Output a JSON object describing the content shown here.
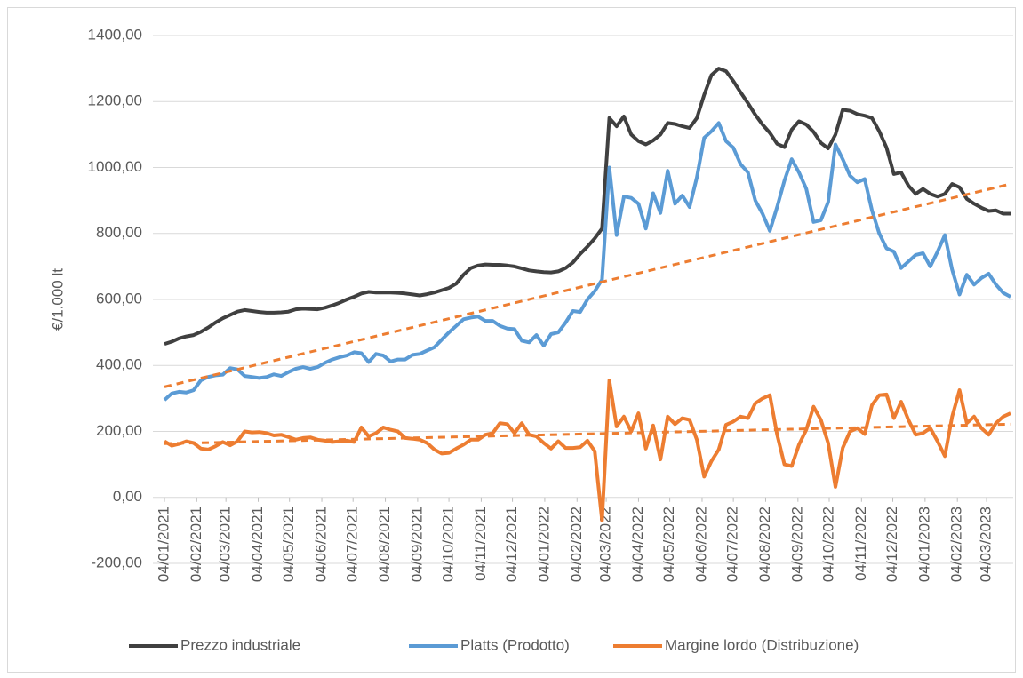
{
  "chart_data": {
    "type": "line",
    "y_label": "€/1.000 lt",
    "x": [
      "04/01/2021",
      "11/01/2021",
      "18/01/2021",
      "25/01/2021",
      "01/02/2021",
      "08/02/2021",
      "15/02/2021",
      "22/02/2021",
      "01/03/2021",
      "08/03/2021",
      "15/03/2021",
      "22/03/2021",
      "29/03/2021",
      "05/04/2021",
      "12/04/2021",
      "19/04/2021",
      "26/04/2021",
      "03/05/2021",
      "10/05/2021",
      "17/05/2021",
      "24/05/2021",
      "31/05/2021",
      "07/06/2021",
      "14/06/2021",
      "21/06/2021",
      "28/06/2021",
      "05/07/2021",
      "12/07/2021",
      "19/07/2021",
      "26/07/2021",
      "02/08/2021",
      "09/08/2021",
      "16/08/2021",
      "23/08/2021",
      "30/08/2021",
      "06/09/2021",
      "13/09/2021",
      "20/09/2021",
      "27/09/2021",
      "04/10/2021",
      "11/10/2021",
      "18/10/2021",
      "25/10/2021",
      "01/11/2021",
      "08/11/2021",
      "15/11/2021",
      "22/11/2021",
      "29/11/2021",
      "06/12/2021",
      "13/12/2021",
      "20/12/2021",
      "27/12/2021",
      "03/01/2022",
      "10/01/2022",
      "17/01/2022",
      "24/01/2022",
      "31/01/2022",
      "07/02/2022",
      "14/02/2022",
      "21/02/2022",
      "28/02/2022",
      "07/03/2022",
      "14/03/2022",
      "21/03/2022",
      "28/03/2022",
      "04/04/2022",
      "11/04/2022",
      "18/04/2022",
      "25/04/2022",
      "02/05/2022",
      "09/05/2022",
      "16/05/2022",
      "23/05/2022",
      "30/05/2022",
      "06/06/2022",
      "13/06/2022",
      "20/06/2022",
      "27/06/2022",
      "04/07/2022",
      "11/07/2022",
      "18/07/2022",
      "25/07/2022",
      "01/08/2022",
      "08/08/2022",
      "15/08/2022",
      "22/08/2022",
      "29/08/2022",
      "05/09/2022",
      "12/09/2022",
      "19/09/2022",
      "26/09/2022",
      "03/10/2022",
      "10/10/2022",
      "17/10/2022",
      "24/10/2022",
      "31/10/2022",
      "07/11/2022",
      "14/11/2022",
      "21/11/2022",
      "28/11/2022",
      "05/12/2022",
      "12/12/2022",
      "19/12/2022",
      "26/12/2022",
      "02/01/2023",
      "09/01/2023",
      "16/01/2023",
      "23/01/2023",
      "30/01/2023",
      "06/02/2023",
      "13/02/2023",
      "20/02/2023",
      "27/02/2023",
      "06/03/2023",
      "13/03/2023",
      "20/03/2023",
      "27/03/2023"
    ],
    "series": [
      {
        "name": "Prezzo industriale",
        "color": "#404040",
        "values": [
          465,
          472,
          482,
          488,
          492,
          502,
          515,
          530,
          543,
          553,
          563,
          568,
          565,
          562,
          560,
          560,
          561,
          563,
          570,
          572,
          571,
          570,
          575,
          582,
          590,
          600,
          608,
          618,
          623,
          621,
          621,
          621,
          620,
          618,
          615,
          612,
          616,
          621,
          628,
          635,
          648,
          675,
          695,
          703,
          706,
          705,
          705,
          703,
          700,
          694,
          688,
          685,
          683,
          682,
          685,
          695,
          712,
          738,
          760,
          785,
          815,
          1150,
          1125,
          1155,
          1100,
          1080,
          1070,
          1082,
          1100,
          1135,
          1132,
          1125,
          1120,
          1150,
          1220,
          1280,
          1300,
          1292,
          1262,
          1228,
          1195,
          1160,
          1130,
          1105,
          1072,
          1062,
          1115,
          1140,
          1130,
          1108,
          1075,
          1058,
          1100,
          1175,
          1172,
          1162,
          1157,
          1150,
          1110,
          1060,
          980,
          985,
          945,
          920,
          935,
          920,
          912,
          920,
          950,
          940,
          905,
          890,
          878,
          868,
          870,
          860,
          860
        ]
      },
      {
        "name": "Platts (Prodotto)",
        "color": "#5b9bd5",
        "values": [
          295,
          315,
          320,
          318,
          325,
          355,
          365,
          370,
          372,
          392,
          388,
          368,
          365,
          362,
          365,
          373,
          368,
          380,
          390,
          395,
          390,
          395,
          408,
          418,
          425,
          430,
          440,
          437,
          410,
          435,
          430,
          412,
          418,
          418,
          432,
          435,
          445,
          455,
          478,
          500,
          520,
          540,
          545,
          548,
          535,
          535,
          520,
          512,
          510,
          475,
          470,
          492,
          460,
          495,
          500,
          530,
          565,
          562,
          600,
          625,
          660,
          1000,
          795,
          912,
          908,
          890,
          815,
          922,
          862,
          990,
          890,
          915,
          880,
          970,
          1090,
          1110,
          1135,
          1080,
          1060,
          1010,
          985,
          900,
          860,
          808,
          880,
          960,
          1025,
          985,
          935,
          835,
          840,
          895,
          1070,
          1025,
          975,
          955,
          965,
          870,
          800,
          755,
          745,
          695,
          715,
          735,
          740,
          700,
          745,
          795,
          690,
          615,
          675,
          645,
          665,
          678,
          645,
          620,
          608
        ]
      },
      {
        "name": "Margine lordo (Distribuzione)",
        "color": "#ed7d31",
        "values": [
          170,
          157,
          162,
          170,
          165,
          148,
          145,
          155,
          168,
          158,
          170,
          200,
          197,
          198,
          195,
          188,
          190,
          183,
          175,
          180,
          182,
          175,
          172,
          168,
          170,
          172,
          168,
          212,
          185,
          195,
          212,
          205,
          200,
          180,
          178,
          175,
          165,
          145,
          133,
          135,
          148,
          160,
          175,
          175,
          190,
          195,
          225,
          222,
          195,
          225,
          190,
          185,
          165,
          148,
          170,
          150,
          150,
          152,
          172,
          140,
          -70,
          355,
          215,
          245,
          200,
          255,
          148,
          218,
          115,
          245,
          222,
          240,
          235,
          175,
          63,
          110,
          145,
          220,
          230,
          245,
          240,
          285,
          300,
          310,
          190,
          100,
          95,
          160,
          205,
          275,
          235,
          165,
          32,
          150,
          200,
          210,
          192,
          280,
          310,
          312,
          240,
          290,
          235,
          190,
          195,
          210,
          170,
          125,
          245,
          325,
          225,
          245,
          210,
          190,
          225,
          245,
          255
        ]
      }
    ],
    "trendlines": [
      {
        "color": "#ed7d31",
        "values": [
          335,
          950
        ]
      },
      {
        "color": "#ed7d31",
        "values": [
          163,
          222
        ]
      }
    ],
    "xlim": [
      "04/01/2021",
      "27/03/2023"
    ],
    "xticks": [
      "04/01/2021",
      "04/02/2021",
      "04/03/2021",
      "04/04/2021",
      "04/05/2021",
      "04/06/2021",
      "04/07/2021",
      "04/08/2021",
      "04/09/2021",
      "04/10/2021",
      "04/11/2021",
      "04/12/2021",
      "04/01/2022",
      "04/02/2022",
      "04/03/2022",
      "04/04/2022",
      "04/05/2022",
      "04/06/2022",
      "04/07/2022",
      "04/08/2022",
      "04/09/2022",
      "04/10/2022",
      "04/11/2022",
      "04/12/2022",
      "04/01/2023",
      "04/02/2023",
      "04/03/2023"
    ],
    "ylim": [
      -200,
      1400
    ],
    "yticks": [
      {
        "value": -200,
        "label": "-200,00"
      },
      {
        "value": 0,
        "label": "0,00"
      },
      {
        "value": 200,
        "label": "200,00"
      },
      {
        "value": 400,
        "label": "400,00"
      },
      {
        "value": 600,
        "label": "600,00"
      },
      {
        "value": 800,
        "label": "800,00"
      },
      {
        "value": 1000,
        "label": "1000,00"
      },
      {
        "value": 1200,
        "label": "1200,00"
      },
      {
        "value": 1400,
        "label": "1400,00"
      }
    ],
    "grid": true,
    "legend": "bottom"
  }
}
